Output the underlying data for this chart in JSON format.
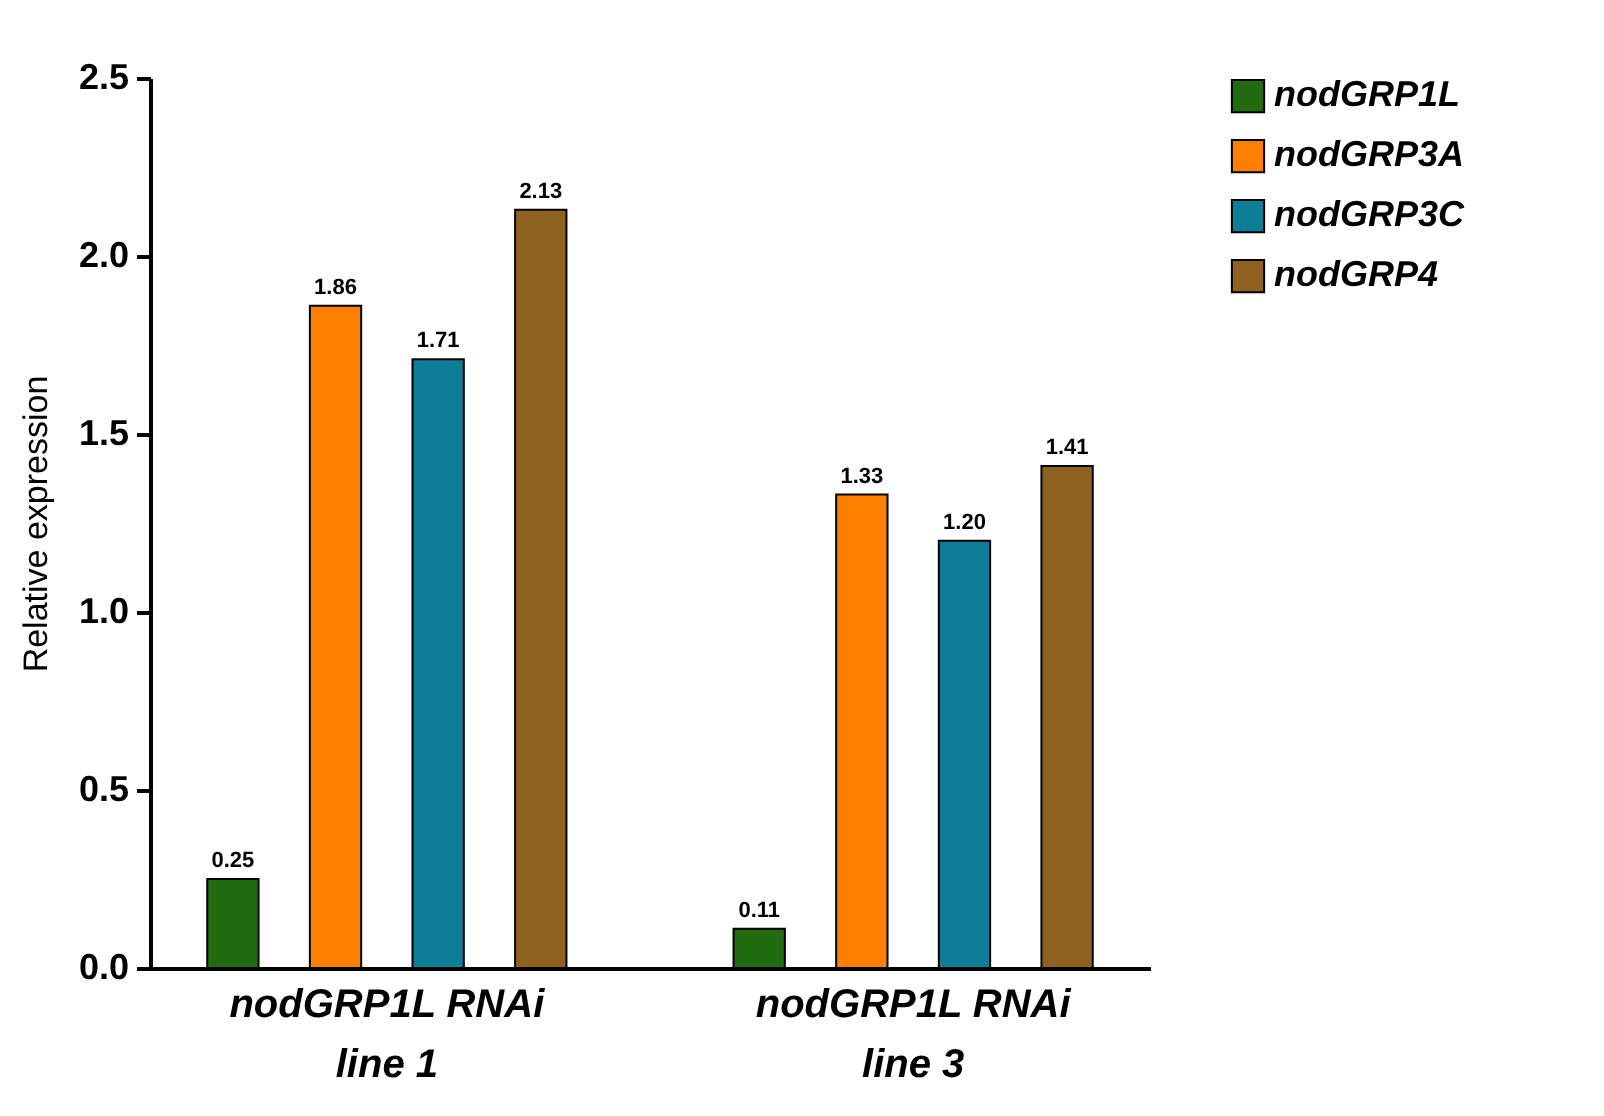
{
  "chart_data": {
    "type": "bar",
    "ylabel": "Relative expression",
    "categories": [
      "nodGRP1L RNAi\nline 1",
      "nodGRP1L RNAi\nline 3"
    ],
    "series": [
      {
        "name": "nodGRP1L",
        "color": "#236b0f",
        "values": [
          0.25,
          0.11
        ],
        "value_labels": [
          "0.25",
          "0.11"
        ]
      },
      {
        "name": "nodGRP3A",
        "color": "#ff7f00",
        "values": [
          1.86,
          1.33
        ],
        "value_labels": [
          "1.86",
          "1.33"
        ]
      },
      {
        "name": "nodGRP3C",
        "color": "#0e7d97",
        "values": [
          1.71,
          1.2
        ],
        "value_labels": [
          "1.71",
          "1.20"
        ]
      },
      {
        "name": "nodGRP4",
        "color": "#8f6121",
        "values": [
          2.13,
          1.41
        ],
        "value_labels": [
          "2.13",
          "1.41"
        ]
      }
    ],
    "ylim": [
      0,
      2.5
    ],
    "yticks": [
      {
        "value": 0,
        "label": "0.0"
      },
      0.5,
      {
        "value": 1,
        "label": "1.0"
      },
      1.5,
      {
        "value": 2,
        "label": "2.0"
      },
      2.5
    ],
    "legend": "top right",
    "grid": false
  }
}
